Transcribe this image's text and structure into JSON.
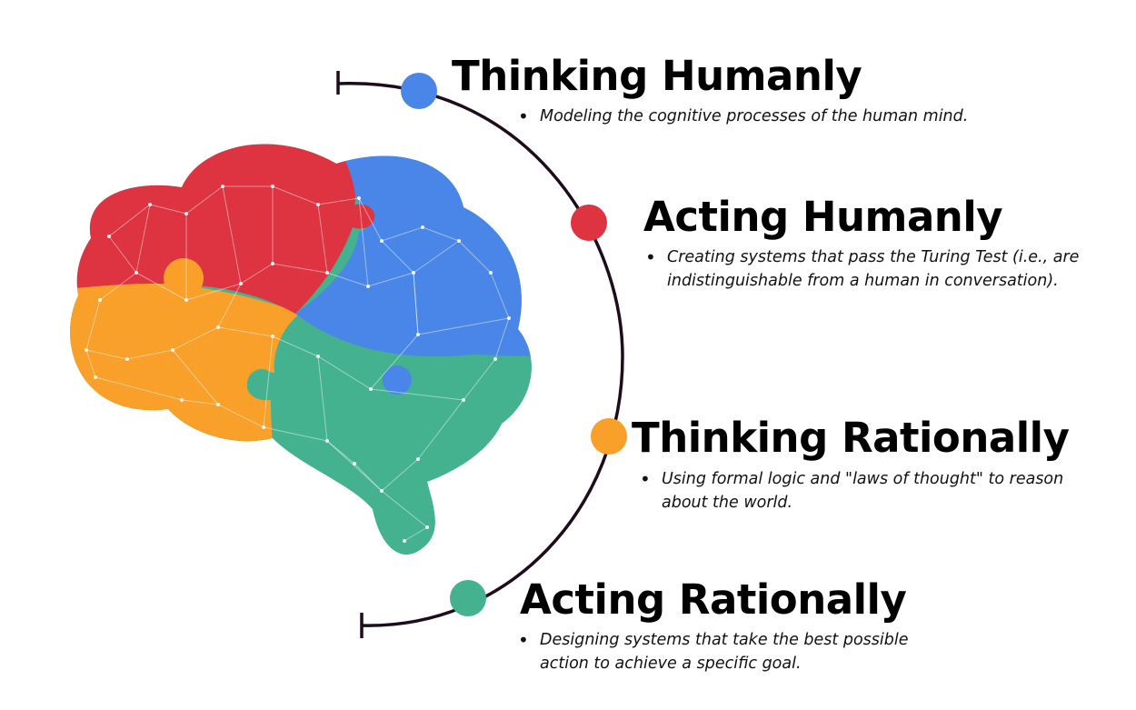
{
  "colors": {
    "blue": "#4a86e8",
    "red": "#de3341",
    "orange": "#f9a02b",
    "green": "#45b28f",
    "arc": "#1e0c1c"
  },
  "brain": {
    "icon": "brain-puzzle-icon"
  },
  "items": [
    {
      "title": "Thinking Humanly",
      "description": "Modeling the cognitive processes of the human mind.",
      "color": "#4a86e8"
    },
    {
      "title": "Acting Humanly",
      "description": "Creating systems that pass the Turing Test (i.e., are indistinguishable from a human in conversation).",
      "color": "#de3341"
    },
    {
      "title": "Thinking Rationally",
      "description": "Using formal logic and \"laws of thought\" to reason about the world.",
      "color": "#f9a02b"
    },
    {
      "title": "Acting Rationally",
      "description": "Designing systems that take the best possible action to achieve a specific goal.",
      "color": "#45b28f"
    }
  ]
}
